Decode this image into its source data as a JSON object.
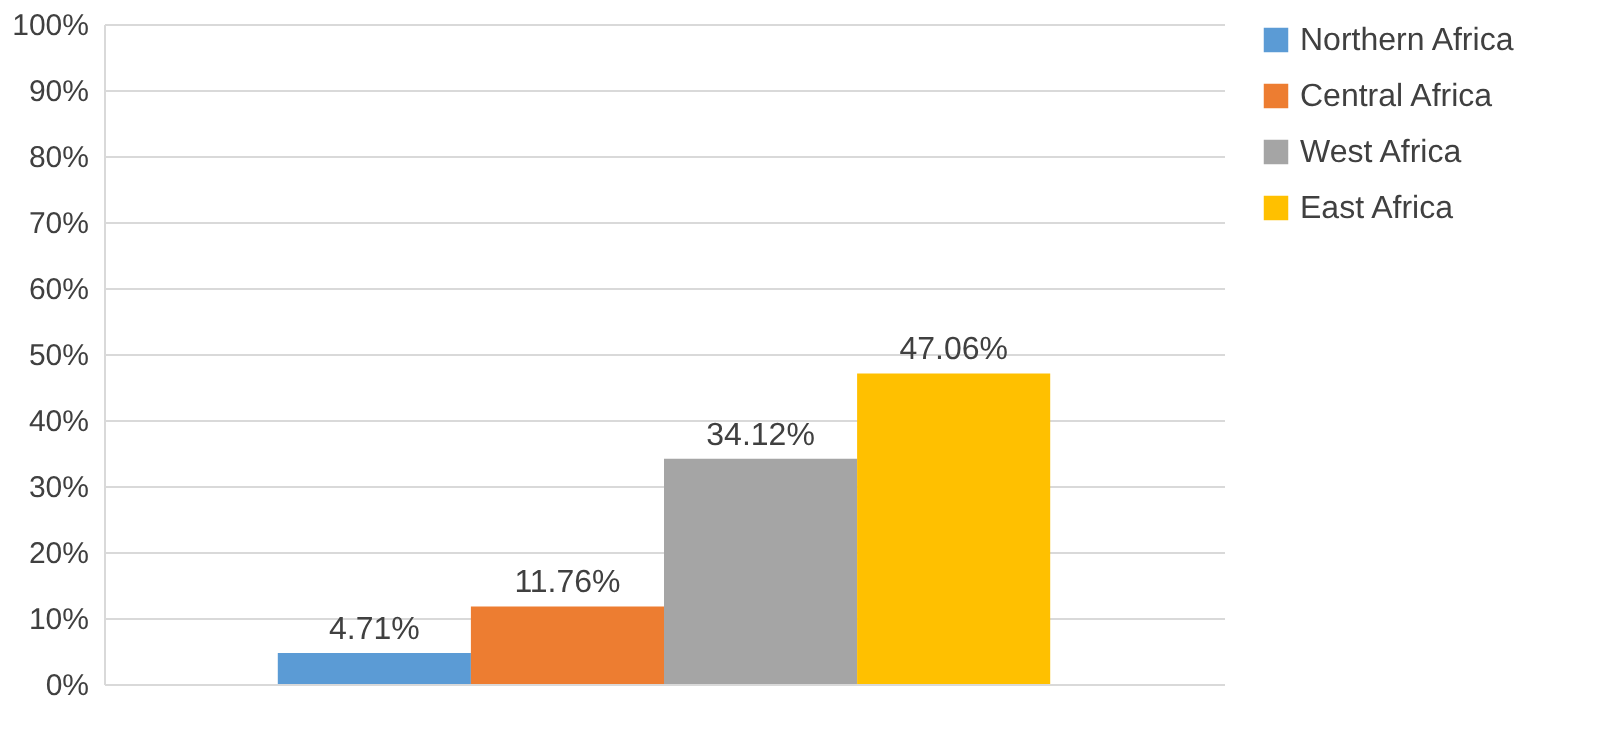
{
  "chart_data": {
    "type": "bar",
    "categories": [
      null
    ],
    "series": [
      {
        "name": "Northern Africa",
        "color": "#5b9bd5",
        "values": [
          4.71
        ],
        "value_labels": [
          "4.71%"
        ]
      },
      {
        "name": "Central Africa",
        "color": "#ed7d31",
        "values": [
          11.76
        ],
        "value_labels": [
          "11.76%"
        ]
      },
      {
        "name": "West Africa",
        "color": "#a5a5a5",
        "values": [
          34.12
        ],
        "value_labels": [
          "34.12%"
        ]
      },
      {
        "name": "East Africa",
        "color": "#ffc000",
        "values": [
          47.06
        ],
        "value_labels": [
          "47.06%"
        ]
      }
    ],
    "ylim": [
      0,
      100
    ],
    "yticks": [
      {
        "value": 0,
        "label": "0%"
      },
      {
        "value": 10,
        "label": "10%"
      },
      {
        "value": 20,
        "label": "20%"
      },
      {
        "value": 30,
        "label": "30%"
      },
      {
        "value": 40,
        "label": "40%"
      },
      {
        "value": 50,
        "label": "50%"
      },
      {
        "value": 60,
        "label": "60%"
      },
      {
        "value": 70,
        "label": "70%"
      },
      {
        "value": 80,
        "label": "80%"
      },
      {
        "value": 90,
        "label": "90%"
      },
      {
        "value": 100,
        "label": "100%"
      }
    ],
    "grid": "y",
    "legend": "right"
  }
}
